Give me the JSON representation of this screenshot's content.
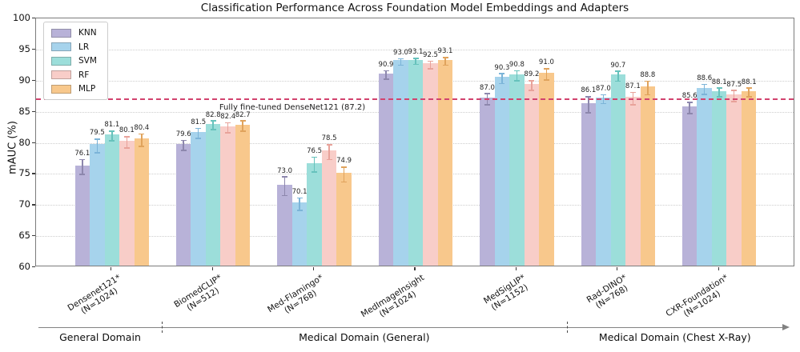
{
  "chart_data": {
    "type": "bar",
    "title": "Classification Performance Across Foundation Model Embeddings and Adapters",
    "ylabel": "mAUC (%)",
    "ylim": [
      60,
      100
    ],
    "yticks": [
      60,
      65,
      70,
      75,
      80,
      85,
      90,
      95,
      100
    ],
    "grid": "horizontal-dotted",
    "legend_position": "upper-left",
    "categories": [
      {
        "label": "Densenet121*",
        "n": "(N=1024)"
      },
      {
        "label": "BiomedCLIP*",
        "n": "(N=512)"
      },
      {
        "label": "Med-Flamingo*",
        "n": "(N=768)"
      },
      {
        "label": "MedImageInsight",
        "n": "(N=1024)"
      },
      {
        "label": "MedSigLIP*",
        "n": "(N=1152)"
      },
      {
        "label": "Rad-DINO*",
        "n": "(N=768)"
      },
      {
        "label": "CXR-Foundation*",
        "n": "(N=1024)"
      }
    ],
    "series": [
      {
        "name": "KNN",
        "color": "#b8b2d8",
        "err_color": "#8d87ad",
        "values": [
          76.1,
          79.6,
          73.0,
          90.9,
          87.0,
          86.1,
          85.6
        ],
        "errors": [
          1.2,
          0.8,
          1.5,
          0.7,
          0.9,
          1.3,
          0.9
        ]
      },
      {
        "name": "LR",
        "color": "#a6d3ec",
        "err_color": "#7cb4d8",
        "values": [
          79.5,
          81.5,
          70.1,
          93.0,
          90.3,
          87.0,
          88.6
        ],
        "errors": [
          1.1,
          0.8,
          1.0,
          0.5,
          0.8,
          0.7,
          0.8
        ]
      },
      {
        "name": "SVM",
        "color": "#9cdeda",
        "err_color": "#66c2bc",
        "values": [
          81.1,
          82.8,
          76.5,
          93.1,
          90.8,
          90.7,
          88.1
        ],
        "errors": [
          0.8,
          0.7,
          1.2,
          0.5,
          0.8,
          0.8,
          0.7
        ]
      },
      {
        "name": "RF",
        "color": "#f8cdc8",
        "err_color": "#e8a29a",
        "values": [
          80.1,
          82.4,
          78.5,
          92.5,
          89.2,
          87.1,
          87.5
        ],
        "errors": [
          0.9,
          0.8,
          1.2,
          0.6,
          0.8,
          1.0,
          0.9
        ]
      },
      {
        "name": "MLP",
        "color": "#f8c88c",
        "err_color": "#e0a35c",
        "values": [
          80.4,
          82.7,
          74.9,
          93.1,
          91.0,
          88.8,
          88.1
        ],
        "errors": [
          1.0,
          0.8,
          1.2,
          0.6,
          0.9,
          1.1,
          0.7
        ]
      }
    ],
    "reference_line": {
      "value": 87.2,
      "label": "Fully fine-tuned DenseNet121 (87.2)",
      "color": "#d2436e",
      "style": "dashed"
    },
    "domain_groups": [
      {
        "label": "General Domain",
        "from": 0,
        "to": 0
      },
      {
        "label": "Medical Domain (General)",
        "from": 1,
        "to": 4
      },
      {
        "label": "Medical Domain (Chest X-Ray)",
        "from": 5,
        "to": 6
      }
    ]
  }
}
